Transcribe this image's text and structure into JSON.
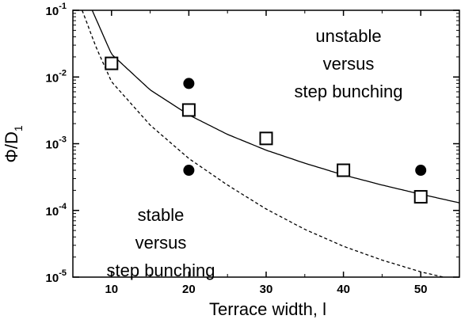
{
  "chart_data": {
    "type": "scatter",
    "xlabel": "Terrace width, l",
    "ylabel_main": "Φ/D",
    "ylabel_sub": "1",
    "xlim": [
      5,
      55
    ],
    "ylim": [
      1e-05,
      0.1
    ],
    "yscale": "log",
    "x_ticks": [
      10,
      20,
      30,
      40,
      50
    ],
    "x_tick_labels": [
      "10",
      "20",
      "30",
      "40",
      "50"
    ],
    "y_ticks": [
      1e-05,
      0.0001,
      0.001,
      0.01,
      0.1
    ],
    "y_tick_labels": [
      {
        "base": "10",
        "exp": "-5"
      },
      {
        "base": "10",
        "exp": "-4"
      },
      {
        "base": "10",
        "exp": "-3"
      },
      {
        "base": "10",
        "exp": "-2"
      },
      {
        "base": "10",
        "exp": "-1"
      }
    ],
    "series": [
      {
        "style": "open-square",
        "x": [
          10,
          20,
          30,
          40,
          50
        ],
        "y": [
          0.016,
          0.0032,
          0.0012,
          0.0004,
          0.00016
        ]
      },
      {
        "style": "filled-circle",
        "x": [
          20,
          20,
          50
        ],
        "y": [
          0.008,
          0.0004,
          0.0004
        ]
      },
      {
        "style": "solid-line",
        "x": [
          7.5,
          10,
          15,
          20,
          25,
          30,
          35,
          40,
          45,
          50,
          55
        ],
        "y": [
          0.1,
          0.022,
          0.0064,
          0.0027,
          0.00138,
          0.0008,
          0.00051,
          0.00034,
          0.00024,
          0.000175,
          0.00013
        ]
      },
      {
        "style": "dashed-line",
        "x": [
          6.2,
          8,
          10,
          15,
          20,
          25,
          30,
          35,
          40,
          45,
          50,
          55
        ],
        "y": [
          0.1,
          0.028,
          0.0085,
          0.0019,
          0.0006,
          0.00024,
          0.000105,
          5.2e-05,
          2.9e-05,
          1.8e-05,
          1.2e-05,
          8.8e-06
        ]
      }
    ],
    "annotations": {
      "unstable": [
        "unstable",
        "versus",
        "step bunching"
      ],
      "stable": [
        "stable",
        "versus",
        "step bunching"
      ]
    }
  }
}
